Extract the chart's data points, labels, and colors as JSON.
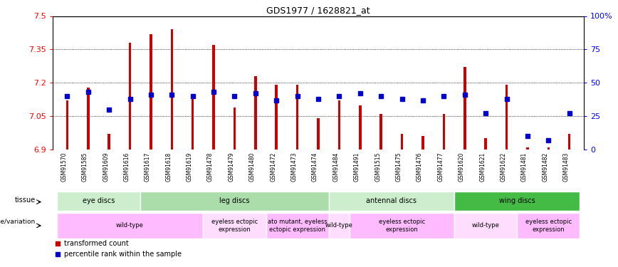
{
  "title": "GDS1977 / 1628821_at",
  "samples": [
    "GSM91570",
    "GSM91585",
    "GSM91609",
    "GSM91616",
    "GSM91617",
    "GSM91618",
    "GSM91619",
    "GSM91478",
    "GSM91479",
    "GSM91480",
    "GSM91472",
    "GSM91473",
    "GSM91474",
    "GSM91484",
    "GSM91491",
    "GSM91515",
    "GSM91475",
    "GSM91476",
    "GSM91477",
    "GSM91620",
    "GSM91621",
    "GSM91622",
    "GSM91481",
    "GSM91482",
    "GSM91483"
  ],
  "red_values": [
    7.12,
    7.18,
    6.97,
    7.38,
    7.42,
    7.44,
    7.13,
    7.37,
    7.09,
    7.23,
    7.19,
    7.19,
    7.04,
    7.12,
    7.1,
    7.06,
    6.97,
    6.96,
    7.06,
    7.27,
    6.95,
    7.19,
    6.91,
    6.91,
    6.97
  ],
  "blue_percentile": [
    40,
    43,
    30,
    38,
    41,
    41,
    40,
    43,
    40,
    42,
    37,
    40,
    38,
    40,
    42,
    40,
    38,
    37,
    40,
    41,
    27,
    38,
    10,
    7,
    27
  ],
  "ymin": 6.9,
  "ymax": 7.5,
  "yticks": [
    6.9,
    7.05,
    7.2,
    7.35,
    7.5
  ],
  "ytick_labels": [
    "6.9",
    "7.05",
    "7.2",
    "7.35",
    "7.5"
  ],
  "right_yticks": [
    0,
    25,
    50,
    75,
    100
  ],
  "right_ytick_labels": [
    "0",
    "25",
    "50",
    "75",
    "100%"
  ],
  "tissue_groups": [
    {
      "label": "eye discs",
      "start": 0,
      "end": 3,
      "color": "#cceecc"
    },
    {
      "label": "leg discs",
      "start": 4,
      "end": 12,
      "color": "#aaddaa"
    },
    {
      "label": "antennal discs",
      "start": 13,
      "end": 18,
      "color": "#cceecc"
    },
    {
      "label": "wing discs",
      "start": 19,
      "end": 24,
      "color": "#44bb44"
    }
  ],
  "genotype_groups": [
    {
      "label": "wild-type",
      "start": 0,
      "end": 6,
      "color": "#ffbbff"
    },
    {
      "label": "eyeless ectopic\nexpression",
      "start": 7,
      "end": 9,
      "color": "#ffddff"
    },
    {
      "label": "ato mutant, eyeless\nectopic expression",
      "start": 10,
      "end": 12,
      "color": "#ffbbff"
    },
    {
      "label": "wild-type",
      "start": 13,
      "end": 13,
      "color": "#ffddff"
    },
    {
      "label": "eyeless ectopic\nexpression",
      "start": 14,
      "end": 18,
      "color": "#ffbbff"
    },
    {
      "label": "wild-type",
      "start": 19,
      "end": 21,
      "color": "#ffddff"
    },
    {
      "label": "eyeless ectopic\nexpression",
      "start": 22,
      "end": 24,
      "color": "#ffbbff"
    }
  ],
  "bar_color": "#cc0000",
  "dot_color": "#0000cc",
  "bar_width": 0.12,
  "background_color": "#ffffff"
}
